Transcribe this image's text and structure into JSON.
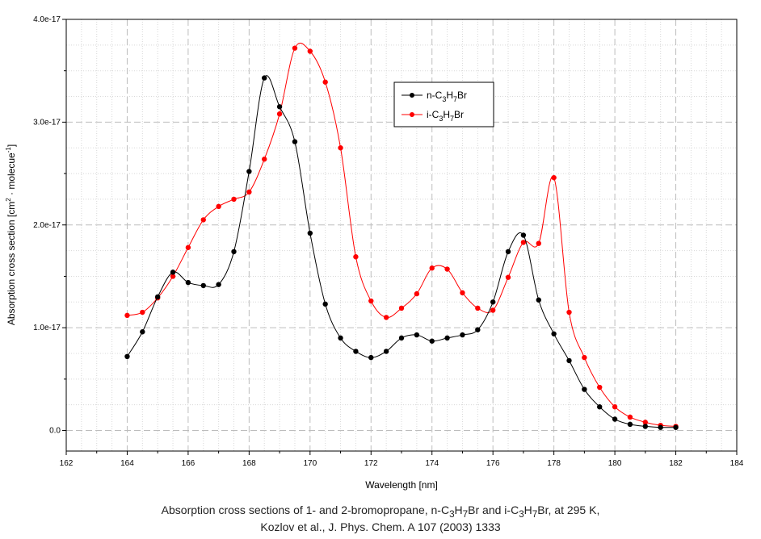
{
  "chart_data": {
    "type": "line",
    "xlabel": "Wavelength [nm]",
    "ylabel": "Absorption cross section [cm² · molecue⁻¹]",
    "xlim": [
      162,
      184
    ],
    "ylim": [
      -2e-18,
      4e-17
    ],
    "xticks": [
      162,
      164,
      166,
      168,
      170,
      172,
      174,
      176,
      178,
      180,
      182,
      184
    ],
    "xtick_labels": [
      "162",
      "164",
      "166",
      "168",
      "170",
      "172",
      "174",
      "176",
      "178",
      "180",
      "182",
      "184"
    ],
    "yticks": [
      0,
      1e-17,
      2e-17,
      3e-17,
      4e-17
    ],
    "ytick_labels": [
      "0.0",
      "1.0e-17",
      "2.0e-17",
      "3.0e-17",
      "4.0e-17"
    ],
    "grid": true,
    "legend_position": "upper-center",
    "series": [
      {
        "name": "n-C3H7Br",
        "color": "#000000",
        "x": [
          164,
          164.5,
          165,
          165.5,
          166,
          166.5,
          167,
          167.5,
          168,
          168.5,
          169,
          169.5,
          170,
          170.5,
          171,
          171.5,
          172,
          172.5,
          173,
          173.5,
          174,
          174.5,
          175,
          175.5,
          176,
          176.5,
          177,
          177.5,
          178,
          178.5,
          179,
          179.5,
          180,
          180.5,
          181,
          181.5,
          182
        ],
        "y": [
          7.2e-18,
          9.6e-18,
          1.3e-17,
          1.54e-17,
          1.44e-17,
          1.41e-17,
          1.42e-17,
          1.74e-17,
          2.52e-17,
          3.43e-17,
          3.15e-17,
          2.81e-17,
          1.92e-17,
          1.23e-17,
          9e-18,
          7.7e-18,
          7.1e-18,
          7.7e-18,
          9e-18,
          9.3e-18,
          8.7e-18,
          9e-18,
          9.3e-18,
          9.8e-18,
          1.25e-17,
          1.74e-17,
          1.9e-17,
          1.27e-17,
          9.4e-18,
          6.8e-18,
          4e-18,
          2.3e-18,
          1.1e-18,
          6e-19,
          4e-19,
          3e-19,
          3e-19
        ]
      },
      {
        "name": "i-C3H7Br",
        "color": "#ff0000",
        "x": [
          164,
          164.5,
          165,
          165.5,
          166,
          166.5,
          167,
          167.5,
          168,
          168.5,
          169,
          169.5,
          170,
          170.5,
          171,
          171.5,
          172,
          172.5,
          173,
          173.5,
          174,
          174.5,
          175,
          175.5,
          176,
          176.5,
          177,
          177.5,
          178,
          178.5,
          179,
          179.5,
          180,
          180.5,
          181,
          181.5,
          182
        ],
        "y": [
          1.12e-17,
          1.15e-17,
          1.29e-17,
          1.5e-17,
          1.78e-17,
          2.05e-17,
          2.18e-17,
          2.25e-17,
          2.32e-17,
          2.64e-17,
          3.08e-17,
          3.72e-17,
          3.69e-17,
          3.39e-17,
          2.75e-17,
          1.69e-17,
          1.26e-17,
          1.1e-17,
          1.19e-17,
          1.33e-17,
          1.58e-17,
          1.57e-17,
          1.34e-17,
          1.19e-17,
          1.17e-17,
          1.49e-17,
          1.83e-17,
          1.82e-17,
          2.46e-17,
          1.15e-17,
          7.1e-18,
          4.2e-18,
          2.3e-18,
          1.3e-18,
          8e-19,
          5e-19,
          4e-19
        ]
      }
    ]
  },
  "legend": {
    "n_prefix": "n-C",
    "i_prefix": "i-C",
    "sub3": "3",
    "h": "H",
    "sub7": "7",
    "br": "Br"
  },
  "ylabel_parts": {
    "main": "Absorption cross section [cm",
    "sup2": "2",
    "mid": " · molecue",
    "supm1": "-1",
    "end": "]"
  },
  "caption": {
    "line1_a": "Absorption cross sections of 1- and 2-bromopropane, n-C",
    "sub3": "3",
    "h": "H",
    "sub7": "7",
    "line1_b": "Br and i-C",
    "line1_c": "Br, at 295 K,",
    "line2": "Kozlov et al.,  J. Phys. Chem. A 107 (2003) 1333"
  }
}
